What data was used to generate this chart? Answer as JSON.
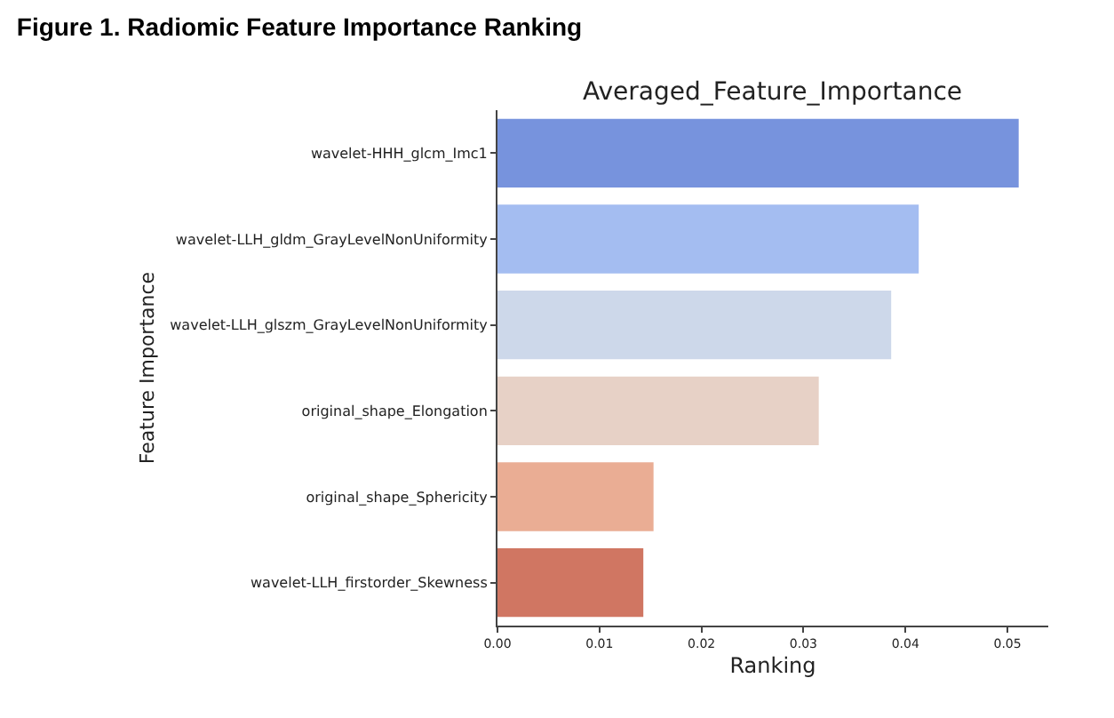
{
  "chart_data": {
    "type": "bar",
    "orientation": "horizontal",
    "title": "Figure 1. Radiomic Feature Importance Ranking",
    "subtitle": "Averaged_Feature_Importance",
    "xlabel": "Ranking",
    "ylabel": "Feature Importance",
    "categories": [
      "wavelet-HHH_glcm_Imc1",
      "wavelet-LLH_gldm_GrayLevelNonUniformity",
      "wavelet-LLH_glszm_GrayLevelNonUniformity",
      "original_shape_Elongation",
      "original_shape_Sphericity",
      "wavelet-LLH_firstorder_Skewness"
    ],
    "values": [
      0.0511,
      0.0413,
      0.0386,
      0.0315,
      0.0153,
      0.0143
    ],
    "colors": [
      "#7793dd",
      "#a4bdf1",
      "#cdd8ea",
      "#e7d1c6",
      "#eaad94",
      "#d07662"
    ],
    "xlim": [
      0,
      0.054
    ],
    "xticks": [
      {
        "value": 0,
        "label": "0.00"
      },
      {
        "value": 0.01,
        "label": "0.01"
      },
      {
        "value": 0.02,
        "label": "0.02"
      },
      {
        "value": 0.03,
        "label": "0.03"
      },
      {
        "value": 0.04,
        "label": "0.04"
      },
      {
        "value": 0.05,
        "label": "0.05"
      }
    ],
    "tick_labels": "xy"
  }
}
